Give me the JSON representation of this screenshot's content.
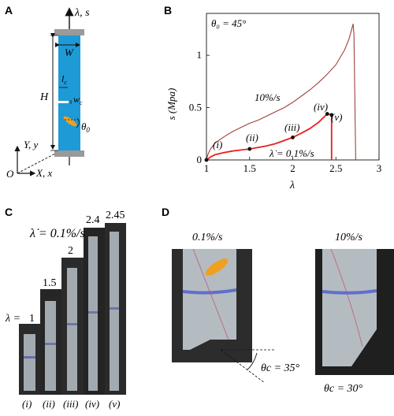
{
  "panels": {
    "A": {
      "letter": "A",
      "axis_top": "λ, s",
      "label_W": "W",
      "label_H": "H",
      "label_lc": "l",
      "label_lc_sub": "c",
      "label_wc": "w",
      "label_wc_sub": "c",
      "label_theta0": "θ",
      "label_theta0_sub": "0",
      "label_Yy": "Y, y",
      "label_Xx": "X, x",
      "label_O": "O",
      "colors": {
        "specimen": "#1e9ad6",
        "clamp": "#9a9a9a",
        "crack": "#f0a020"
      }
    },
    "B": {
      "letter": "B",
      "theta_label": "θ₀ = 45°",
      "rate_fast": "10%/s",
      "rate_slow": "λ̇ = 0.1%/s",
      "points": [
        "(i)",
        "(ii)",
        "(iii)",
        "(iv)",
        "(v)"
      ],
      "chart_data": {
        "type": "line",
        "xlabel": "λ",
        "ylabel": "s (Mpa)",
        "xlim": [
          1,
          3
        ],
        "ylim": [
          0,
          1.4
        ],
        "x_ticks": [
          "1",
          "1.5",
          "2",
          "2.5",
          "3"
        ],
        "y_ticks": [
          "0",
          "0.5",
          "1"
        ],
        "x_tick_values": [
          1,
          1.5,
          2,
          2.5,
          3
        ],
        "y_tick_values": [
          0,
          0.5,
          1
        ],
        "series": [
          {
            "name": "10%/s",
            "color": "#a0403c",
            "x": [
              1.0,
              1.02,
              1.05,
              1.1,
              1.2,
              1.3,
              1.4,
              1.5,
              1.6,
              1.7,
              1.8,
              1.9,
              2.0,
              2.1,
              2.2,
              2.3,
              2.4,
              2.5,
              2.6,
              2.65,
              2.68,
              2.7,
              2.71,
              2.72,
              2.73
            ],
            "y": [
              0.0,
              0.06,
              0.11,
              0.16,
              0.22,
              0.27,
              0.31,
              0.35,
              0.38,
              0.42,
              0.46,
              0.5,
              0.55,
              0.61,
              0.67,
              0.74,
              0.82,
              0.91,
              1.05,
              1.15,
              1.24,
              1.3,
              1.2,
              0.6,
              0.0
            ]
          },
          {
            "name": "λ̇ = 0.1%/s",
            "color": "#e8201c",
            "x": [
              1.0,
              1.05,
              1.1,
              1.2,
              1.3,
              1.4,
              1.5,
              1.6,
              1.7,
              1.8,
              1.9,
              2.0,
              2.1,
              2.2,
              2.3,
              2.4,
              2.45,
              2.45
            ],
            "y": [
              0.0,
              0.03,
              0.05,
              0.07,
              0.085,
              0.095,
              0.105,
              0.12,
              0.135,
              0.155,
              0.185,
              0.215,
              0.255,
              0.3,
              0.36,
              0.44,
              0.43,
              0.0
            ]
          }
        ],
        "markers": [
          {
            "label": "(i)",
            "x": 1.0,
            "y": 0.0
          },
          {
            "label": "(ii)",
            "x": 1.5,
            "y": 0.105
          },
          {
            "label": "(iii)",
            "x": 2.0,
            "y": 0.215
          },
          {
            "label": "(iv)",
            "x": 2.4,
            "y": 0.44
          },
          {
            "label": "(v)",
            "x": 2.45,
            "y": 0.43
          }
        ]
      }
    },
    "C": {
      "letter": "C",
      "rate": "λ̇ = 0.1%/s",
      "lambda_prefix": "λ =",
      "stretches": [
        "1",
        "1.5",
        "2",
        "2.4",
        "2.45"
      ],
      "roman": [
        "(i)",
        "(ii)",
        "(iii)",
        "(iv)",
        "(v)"
      ]
    },
    "D": {
      "letter": "D",
      "left_rate": "0.1%/s",
      "right_rate": "10%/s",
      "left_angle": "θc = 35°",
      "right_angle": "θc = 30°"
    }
  }
}
